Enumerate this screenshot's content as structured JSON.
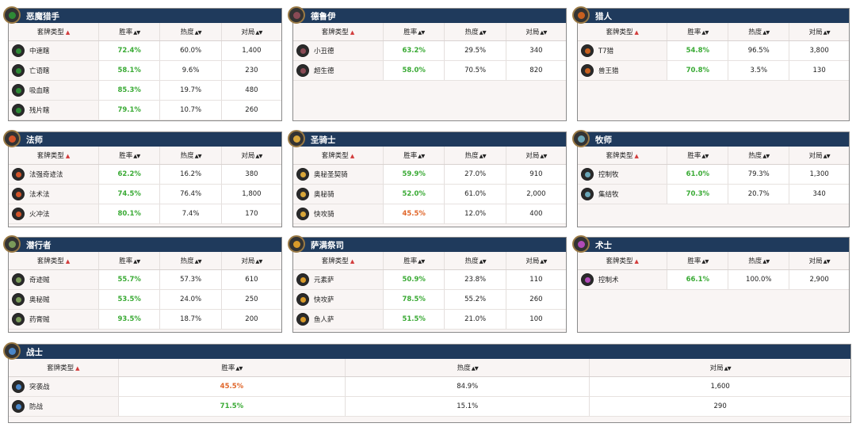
{
  "headers": {
    "deck_type": "套牌类型",
    "win_rate": "胜率",
    "popularity": "热度",
    "matches": "对局",
    "sort_indicator": "▲▼",
    "active_sort": "▲"
  },
  "panels": [
    {
      "id": "dh",
      "cls": "恶魔猎手",
      "color": "#2e8a36",
      "rows": [
        {
          "name": "中速瞎",
          "wr": "72.4%",
          "wr_color": "#3aaa35",
          "pop": "60.0%",
          "games": "1,400"
        },
        {
          "name": "亡语瞎",
          "wr": "58.1%",
          "wr_color": "#3aaa35",
          "pop": "9.6%",
          "games": "230"
        },
        {
          "name": "吸血瞎",
          "wr": "85.3%",
          "wr_color": "#3aaa35",
          "pop": "19.7%",
          "games": "480"
        },
        {
          "name": "残片瞎",
          "wr": "79.1%",
          "wr_color": "#3aaa35",
          "pop": "10.7%",
          "games": "260"
        }
      ]
    },
    {
      "id": "druid",
      "cls": "德鲁伊",
      "color": "#8a4a55",
      "rows": [
        {
          "name": "小丑德",
          "wr": "63.2%",
          "wr_color": "#3aaa35",
          "pop": "29.5%",
          "games": "340"
        },
        {
          "name": "超生德",
          "wr": "58.0%",
          "wr_color": "#3aaa35",
          "pop": "70.5%",
          "games": "820"
        }
      ]
    },
    {
      "id": "hunter",
      "cls": "猎人",
      "color": "#c8601f",
      "rows": [
        {
          "name": "T7猎",
          "wr": "54.8%",
          "wr_color": "#3aaa35",
          "pop": "96.5%",
          "games": "3,800"
        },
        {
          "name": "兽王猎",
          "wr": "70.8%",
          "wr_color": "#3aaa35",
          "pop": "3.5%",
          "games": "130"
        }
      ]
    },
    {
      "id": "mage",
      "cls": "法师",
      "color": "#d2542a",
      "rows": [
        {
          "name": "法强奇迹法",
          "wr": "62.2%",
          "wr_color": "#3aaa35",
          "pop": "16.2%",
          "games": "380"
        },
        {
          "name": "法术法",
          "wr": "74.5%",
          "wr_color": "#3aaa35",
          "pop": "76.4%",
          "games": "1,800"
        },
        {
          "name": "火冲法",
          "wr": "80.1%",
          "wr_color": "#3aaa35",
          "pop": "7.4%",
          "games": "170"
        }
      ]
    },
    {
      "id": "paladin",
      "cls": "圣骑士",
      "color": "#d8a63a",
      "rows": [
        {
          "name": "奥秘圣契骑",
          "wr": "59.9%",
          "wr_color": "#3aaa35",
          "pop": "27.0%",
          "games": "910"
        },
        {
          "name": "奥秘骑",
          "wr": "52.0%",
          "wr_color": "#3aaa35",
          "pop": "61.0%",
          "games": "2,000"
        },
        {
          "name": "快攻骑",
          "wr": "45.5%",
          "wr_color": "#e0662a",
          "pop": "12.0%",
          "games": "400"
        }
      ]
    },
    {
      "id": "priest",
      "cls": "牧师",
      "color": "#6aa6b8",
      "rows": [
        {
          "name": "控制牧",
          "wr": "61.0%",
          "wr_color": "#3aaa35",
          "pop": "79.3%",
          "games": "1,300"
        },
        {
          "name": "集结牧",
          "wr": "70.3%",
          "wr_color": "#3aaa35",
          "pop": "20.7%",
          "games": "340"
        }
      ]
    },
    {
      "id": "rogue",
      "cls": "潜行者",
      "color": "#7a9a5a",
      "rows": [
        {
          "name": "奇迹贼",
          "wr": "55.7%",
          "wr_color": "#3aaa35",
          "pop": "57.3%",
          "games": "610"
        },
        {
          "name": "奥秘贼",
          "wr": "53.5%",
          "wr_color": "#3aaa35",
          "pop": "24.0%",
          "games": "250"
        },
        {
          "name": "药膏贼",
          "wr": "93.5%",
          "wr_color": "#3aaa35",
          "pop": "18.7%",
          "games": "200"
        }
      ]
    },
    {
      "id": "shaman",
      "cls": "萨满祭司",
      "color": "#d89a2a",
      "rows": [
        {
          "name": "元素萨",
          "wr": "50.9%",
          "wr_color": "#3aaa35",
          "pop": "23.8%",
          "games": "110"
        },
        {
          "name": "快攻萨",
          "wr": "78.5%",
          "wr_color": "#3aaa35",
          "pop": "55.2%",
          "games": "260"
        },
        {
          "name": "鱼人萨",
          "wr": "51.5%",
          "wr_color": "#3aaa35",
          "pop": "21.0%",
          "games": "100"
        }
      ]
    },
    {
      "id": "warlock",
      "cls": "术士",
      "color": "#b04ab8",
      "rows": [
        {
          "name": "控制术",
          "wr": "66.1%",
          "wr_color": "#3aaa35",
          "pop": "100.0%",
          "games": "2,900"
        }
      ]
    },
    {
      "id": "warrior",
      "cls": "战士",
      "color": "#4a86c8",
      "rows": [
        {
          "name": "突袭战",
          "wr": "45.5%",
          "wr_color": "#e0662a",
          "pop": "84.9%",
          "games": "1,600"
        },
        {
          "name": "防战",
          "wr": "71.5%",
          "wr_color": "#3aaa35",
          "pop": "15.1%",
          "games": "290"
        }
      ]
    }
  ]
}
